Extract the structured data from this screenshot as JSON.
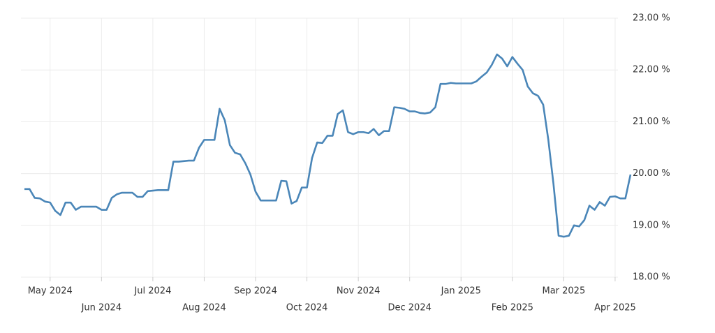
{
  "chart_data": {
    "type": "line",
    "categories": [
      null,
      null,
      null,
      null,
      null,
      "May 2024",
      null,
      null,
      null,
      null,
      null,
      null,
      null,
      null,
      null,
      "Jun 2024",
      null,
      null,
      null,
      null,
      null,
      null,
      null,
      null,
      null,
      "Jul 2024",
      null,
      null,
      null,
      null,
      null,
      null,
      null,
      null,
      null,
      "Aug 2024",
      null,
      null,
      null,
      null,
      null,
      null,
      null,
      null,
      null,
      "Sep 2024",
      null,
      null,
      null,
      null,
      null,
      null,
      null,
      null,
      null,
      "Oct 2024",
      null,
      null,
      null,
      null,
      null,
      null,
      null,
      null,
      null,
      "Nov 2024",
      null,
      null,
      null,
      null,
      null,
      null,
      null,
      null,
      null,
      "Dec 2024",
      null,
      null,
      null,
      null,
      null,
      null,
      null,
      null,
      null,
      "Jan 2025",
      null,
      null,
      null,
      null,
      null,
      null,
      null,
      null,
      null,
      "Feb 2025",
      null,
      null,
      null,
      null,
      null,
      null,
      null,
      null,
      null,
      "Mar 2025",
      null,
      null,
      null,
      null,
      null,
      null,
      null,
      null,
      null,
      "Apr 2025",
      null,
      null,
      null
    ],
    "values": [
      19.7,
      19.7,
      19.53,
      19.52,
      19.46,
      19.44,
      19.28,
      19.2,
      19.44,
      19.44,
      19.3,
      19.36,
      19.36,
      19.36,
      19.36,
      19.3,
      19.3,
      19.53,
      19.6,
      19.63,
      19.63,
      19.63,
      19.55,
      19.55,
      19.66,
      19.67,
      19.68,
      19.68,
      19.68,
      20.23,
      20.23,
      20.24,
      20.25,
      20.25,
      20.5,
      20.65,
      20.65,
      20.65,
      21.25,
      21.03,
      20.55,
      20.4,
      20.37,
      20.2,
      19.98,
      19.65,
      19.48,
      19.48,
      19.48,
      19.48,
      19.86,
      19.85,
      19.42,
      19.47,
      19.73,
      19.73,
      20.3,
      20.6,
      20.59,
      20.73,
      20.73,
      21.15,
      21.22,
      20.8,
      20.76,
      20.8,
      20.8,
      20.78,
      20.86,
      20.74,
      20.82,
      20.82,
      21.28,
      21.27,
      21.25,
      21.2,
      21.2,
      21.17,
      21.16,
      21.18,
      21.28,
      21.73,
      21.73,
      21.75,
      21.74,
      21.74,
      21.74,
      21.74,
      21.78,
      21.87,
      21.95,
      22.1,
      22.3,
      22.22,
      22.07,
      22.25,
      22.12,
      22.0,
      21.68,
      21.55,
      21.5,
      21.33,
      20.65,
      19.8,
      18.8,
      18.78,
      18.8,
      19.0,
      18.98,
      19.1,
      19.38,
      19.3,
      19.45,
      19.38,
      19.55,
      19.56,
      19.52,
      19.52,
      19.98
    ],
    "color": "#4a86b8",
    "ylim": [
      18,
      23
    ],
    "yticks": [
      {
        "value": 18,
        "label": "18.00 %"
      },
      {
        "value": 19,
        "label": "19.00 %"
      },
      {
        "value": 20,
        "label": "20.00 %"
      },
      {
        "value": 21,
        "label": "21.00 %"
      },
      {
        "value": 22,
        "label": "22.00 %"
      },
      {
        "value": 23,
        "label": "23.00 %"
      }
    ],
    "grid": true
  }
}
